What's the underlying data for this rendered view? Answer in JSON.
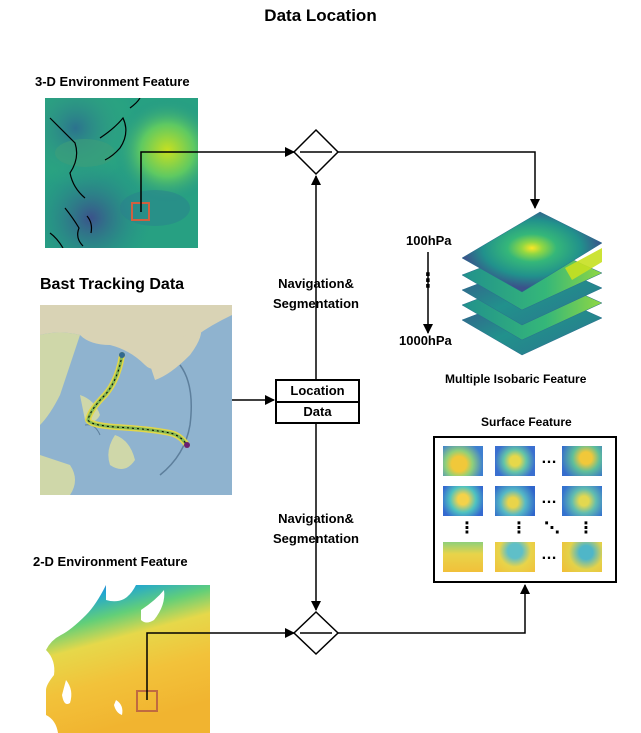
{
  "title": "Data Location",
  "labels": {
    "env3d": "3-D Environment Feature",
    "tracking": "Bast Tracking Data",
    "env2d": "2-D Environment Feature",
    "nav_top_1": "Navigation&",
    "nav_top_2": "Segmentation",
    "nav_bottom_1": "Navigation&",
    "nav_bottom_2": "Segmentation",
    "location": "Location",
    "data": "Data",
    "pressure_top": "100hPa",
    "pressure_dots": "⋮",
    "pressure_bottom": "1000hPa",
    "isobaric": "Multiple Isobaric Feature",
    "surface": "Surface Feature"
  },
  "surface_grid": {
    "ellipsis_h": "…",
    "ellipsis_v": "⋮",
    "ellipsis_d": "⋱"
  },
  "colors": {
    "arrow": "#000000",
    "highlight_box": "#d06040",
    "viridis_dark": "#2f4d8b",
    "viridis_mid": "#21918c",
    "viridis_light": "#5ec962",
    "viridis_yellow": "#fde725",
    "ocean": "#8fb3cf",
    "land": "#d9d3b5"
  }
}
